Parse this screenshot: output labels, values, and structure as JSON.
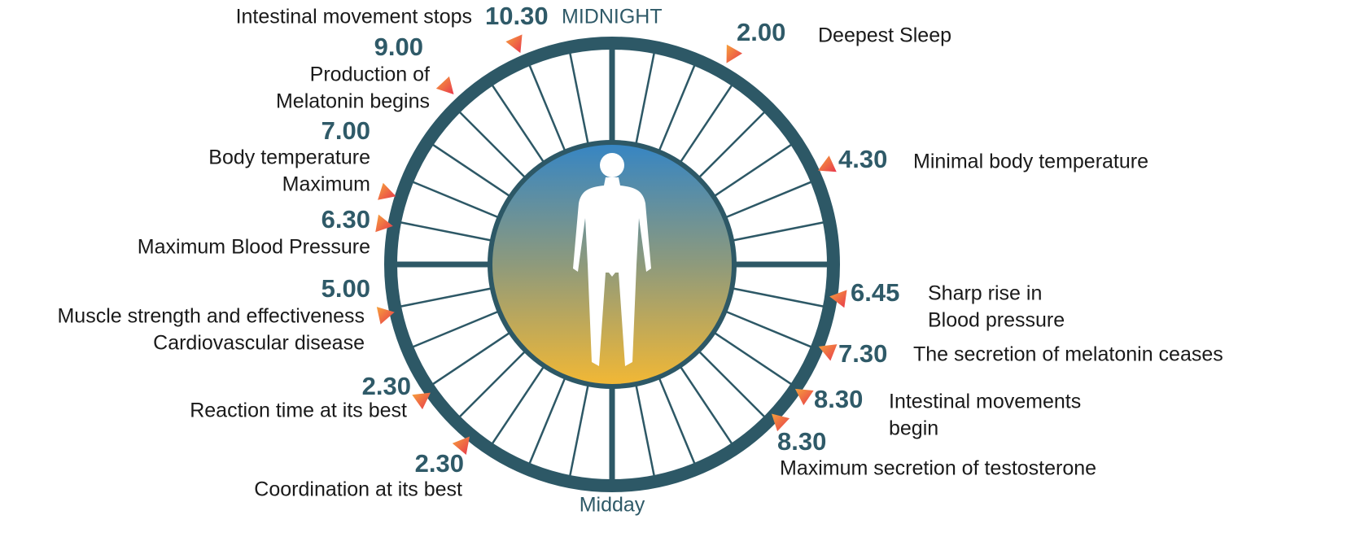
{
  "header": {
    "midnight": "MIDNIGHT",
    "midday": "Midday"
  },
  "events": [
    {
      "time": "10.30",
      "lines": [
        "Intestinal movement stops"
      ]
    },
    {
      "time": "2.00",
      "lines": [
        "Deepest Sleep"
      ]
    },
    {
      "time": "9.00",
      "lines": [
        "Production of",
        "Melatonin begins"
      ]
    },
    {
      "time": "4.30",
      "lines": [
        "Minimal body temperature"
      ]
    },
    {
      "time": "7.00",
      "lines": [
        "Body temperature",
        "Maximum"
      ]
    },
    {
      "time": "6.30",
      "lines": [
        "Maximum Blood Pressure"
      ]
    },
    {
      "time": "5.00",
      "lines": [
        "Muscle strength and effectiveness",
        "Cardiovascular disease"
      ]
    },
    {
      "time": "6.45",
      "lines": [
        "Sharp rise in",
        "Blood pressure"
      ]
    },
    {
      "time": "7.30",
      "lines": [
        "The secretion of melatonin ceases"
      ]
    },
    {
      "time": "2.30",
      "lines": [
        "Reaction time at its best"
      ]
    },
    {
      "time": "8.30",
      "lines": [
        "Intestinal movements",
        "begin"
      ]
    },
    {
      "time": "8.30",
      "lines": [
        "Maximum secretion of testosterone"
      ]
    },
    {
      "time": "2.30",
      "lines": [
        "Coordination at its best"
      ]
    }
  ]
}
